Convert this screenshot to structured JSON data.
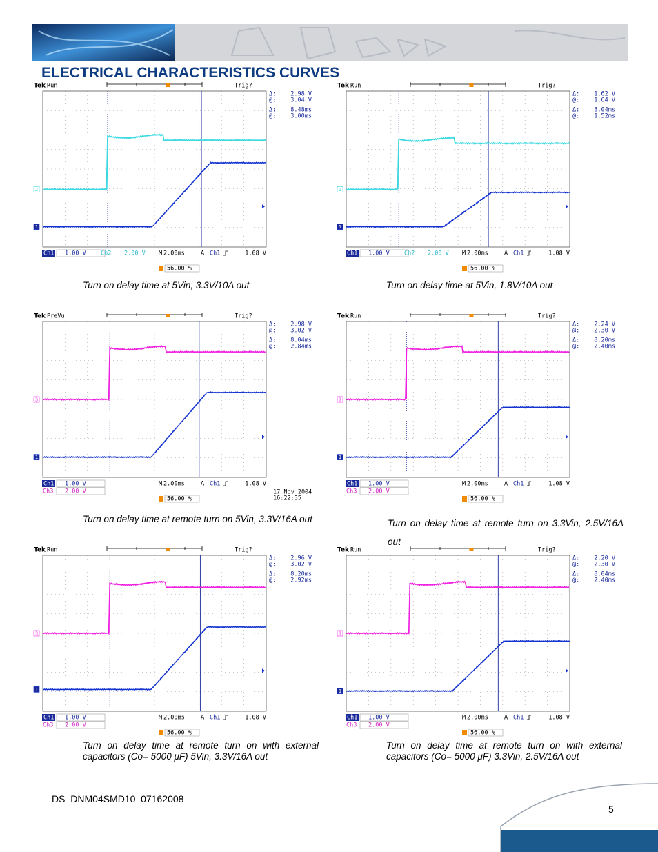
{
  "header": {
    "title": "ELECTRICAL CHARACTERISTICS CURVES"
  },
  "scopes": [
    {
      "brand": "Tek",
      "status": "Run",
      "trig": "Trig?",
      "readouts": [
        {
          "symbol": "Δ:",
          "value": "2.98 V"
        },
        {
          "symbol": "@:",
          "value": "3.04 V"
        },
        {
          "symbol": "Δ:",
          "value": "8.48ms"
        },
        {
          "symbol": "@:",
          "value": "3.00ms"
        }
      ],
      "markers": [
        "2",
        "1"
      ],
      "bar": {
        "ch1": "Ch1",
        "ch1_scale": "1.00 V",
        "ch2": "Ch2",
        "ch2_scale": "2.00 V",
        "m": "M",
        "timebase": "2.00ms",
        "trig_mode": "A",
        "trig_src": "Ch1",
        "trig_level": "1.08 V"
      },
      "trigger_pos": "56.00 %",
      "caption": "Turn on delay time at 5Vin, 3.3V/10A out"
    },
    {
      "brand": "Tek",
      "status": "Run",
      "trig": "Trig?",
      "readouts": [
        {
          "symbol": "Δ:",
          "value": "1.62 V"
        },
        {
          "symbol": "@:",
          "value": "1.64 V"
        },
        {
          "symbol": "Δ:",
          "value": "8.04ms"
        },
        {
          "symbol": "@:",
          "value": "1.52ms"
        }
      ],
      "markers": [
        "2",
        "1"
      ],
      "bar": {
        "ch1": "Ch1",
        "ch1_scale": "1.00 V",
        "ch2": "Ch2",
        "ch2_scale": "2.00 V",
        "m": "M",
        "timebase": "2.00ms",
        "trig_mode": "A",
        "trig_src": "Ch1",
        "trig_level": "1.08 V"
      },
      "trigger_pos": "56.00 %",
      "caption": "Turn on delay time at 5Vin, 1.8V/10A out"
    },
    {
      "brand": "Tek",
      "status": "PreVu",
      "trig": "Trig?",
      "readouts": [
        {
          "symbol": "Δ:",
          "value": "2.98 V"
        },
        {
          "symbol": "@:",
          "value": "3.02 V"
        },
        {
          "symbol": "Δ:",
          "value": "8.04ms"
        },
        {
          "symbol": "@:",
          "value": "2.84ms"
        }
      ],
      "markers": [
        "3",
        "1"
      ],
      "bar": {
        "ch1": "Ch1",
        "ch1_scale": "1.00 V",
        "ch3": "Ch3",
        "ch3_scale": "2.00 V",
        "m": "M",
        "timebase": "2.00ms",
        "trig_mode": "A",
        "trig_src": "Ch1",
        "trig_level": "1.08 V"
      },
      "trigger_pos": "56.00 %",
      "date": "17 Nov 2004",
      "time": "16:22:35",
      "caption": "Turn on delay time at remote turn on 5Vin, 3.3V/16A out"
    },
    {
      "brand": "Tek",
      "status": "Run",
      "trig": "Trig?",
      "readouts": [
        {
          "symbol": "Δ:",
          "value": "2.24 V"
        },
        {
          "symbol": "@:",
          "value": "2.30 V"
        },
        {
          "symbol": "Δ:",
          "value": "8.20ms"
        },
        {
          "symbol": "@:",
          "value": "2.40ms"
        }
      ],
      "markers": [
        "3",
        "1"
      ],
      "bar": {
        "ch1": "Ch1",
        "ch1_scale": "1.00 V",
        "ch3": "Ch3",
        "ch3_scale": "2.00 V",
        "m": "M",
        "timebase": "2.00ms",
        "trig_mode": "A",
        "trig_src": "Ch1",
        "trig_level": "1.08 V"
      },
      "trigger_pos": "56.00 %",
      "caption": "Turn on delay time at remote turn on 3.3Vin, 2.5V/16A out"
    },
    {
      "brand": "Tek",
      "status": "Run",
      "trig": "Trig?",
      "readouts": [
        {
          "symbol": "Δ:",
          "value": "2.96 V"
        },
        {
          "symbol": "@:",
          "value": "3.02 V"
        },
        {
          "symbol": "Δ:",
          "value": "8.20ms"
        },
        {
          "symbol": "@:",
          "value": "2.92ms"
        }
      ],
      "markers": [
        "3",
        "1"
      ],
      "bar": {
        "ch1": "Ch1",
        "ch1_scale": "1.00 V",
        "ch3": "Ch3",
        "ch3_scale": "2.00 V",
        "m": "M",
        "timebase": "2.00ms",
        "trig_mode": "A",
        "trig_src": "Ch1",
        "trig_level": "1.08 V"
      },
      "trigger_pos": "56.00 %",
      "caption": "Turn on delay time at remote turn on with external capacitors (Co= 5000 μF) 5Vin, 3.3V/16A out"
    },
    {
      "brand": "Tek",
      "status": "Run",
      "trig": "Trig?",
      "readouts": [
        {
          "symbol": "Δ:",
          "value": "2.20 V"
        },
        {
          "symbol": "@:",
          "value": "2.30 V"
        },
        {
          "symbol": "Δ:",
          "value": "8.04ms"
        },
        {
          "symbol": "@:",
          "value": "2.40ms"
        }
      ],
      "markers": [
        "3",
        "1"
      ],
      "bar": {
        "ch1": "Ch1",
        "ch1_scale": "1.00 V",
        "ch3": "Ch3",
        "ch3_scale": "2.00 V",
        "m": "M",
        "timebase": "2.00ms",
        "trig_mode": "A",
        "trig_src": "Ch1",
        "trig_level": "1.08 V"
      },
      "trigger_pos": "56.00 %",
      "caption": "Turn on delay time at remote turn on with external capacitors (Co= 5000 μF) 3.3Vin, 2.5V/16A out"
    }
  ],
  "footer": {
    "doc_id": "DS_DNM04SMD10_07162008",
    "page": "5"
  }
}
